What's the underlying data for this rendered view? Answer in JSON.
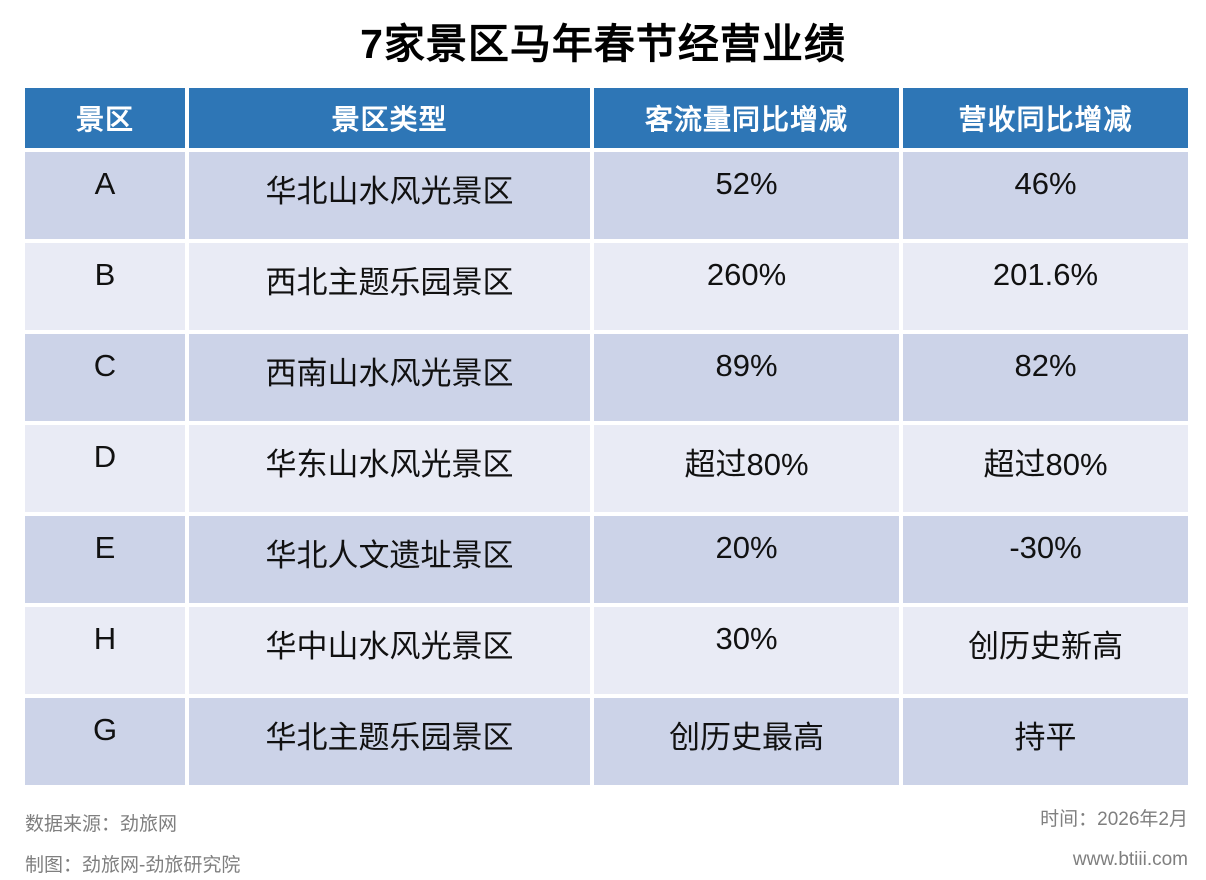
{
  "title": "7家景区马年春节经营业绩",
  "chart_data": {
    "type": "table",
    "title": "7家景区马年春节经营业绩",
    "columns": [
      "景区",
      "景区类型",
      "客流量同比增减",
      "营收同比增减"
    ],
    "rows": [
      [
        "A",
        "华北山水风光景区",
        "52%",
        "46%"
      ],
      [
        "B",
        "西北主题乐园景区",
        "260%",
        "201.6%"
      ],
      [
        "C",
        "西南山水风光景区",
        "89%",
        "82%"
      ],
      [
        "D",
        "华东山水风光景区",
        "超过80%",
        "超过80%"
      ],
      [
        "E",
        "华北人文遗址景区",
        "20%",
        "-30%"
      ],
      [
        "H",
        "华中山水风光景区",
        "30%",
        "创历史新高"
      ],
      [
        "G",
        "华北主题乐园景区",
        "创历史最高",
        "持平"
      ]
    ],
    "layout": {
      "legend": "none",
      "grid": "off",
      "header_position": "top"
    }
  },
  "colors": {
    "header_bg": "#2E76B6",
    "header_text": "#FFFFFF",
    "row_dark": "#CCD3E8",
    "row_light": "#E9EBF5",
    "body_text": "#111111",
    "footer_text": "#7F7F7F"
  },
  "footer": {
    "source": "数据来源：劲旅网",
    "credit": "制图：劲旅网-劲旅研究院",
    "time": "时间：2026年2月",
    "website": "www.btiii.com"
  }
}
